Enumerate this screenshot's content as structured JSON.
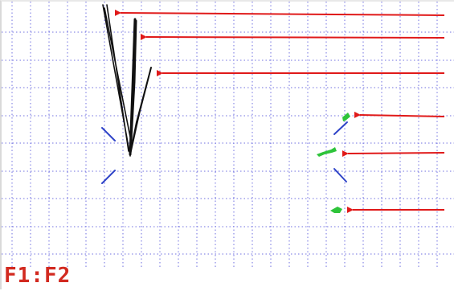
{
  "display": {
    "status_label": "F1:F2",
    "colors": {
      "grid": "#7070e0",
      "trace": "#111111",
      "marker": "#2f44c8",
      "signal": "#2ec43a",
      "arrow": "#e01919",
      "label": "#d22a20"
    }
  },
  "elements": {
    "traces": [
      "trace-line-1",
      "trace-line-2",
      "trace-line-3"
    ],
    "signals": [
      "signal-blip-1",
      "signal-blip-2",
      "signal-blip-3"
    ],
    "markers": [
      "crosshair-marker-left",
      "crosshair-marker-right"
    ],
    "arrows": [
      "pointer-arrow-1",
      "pointer-arrow-2",
      "pointer-arrow-3",
      "pointer-arrow-4",
      "pointer-arrow-5",
      "pointer-arrow-6"
    ]
  }
}
